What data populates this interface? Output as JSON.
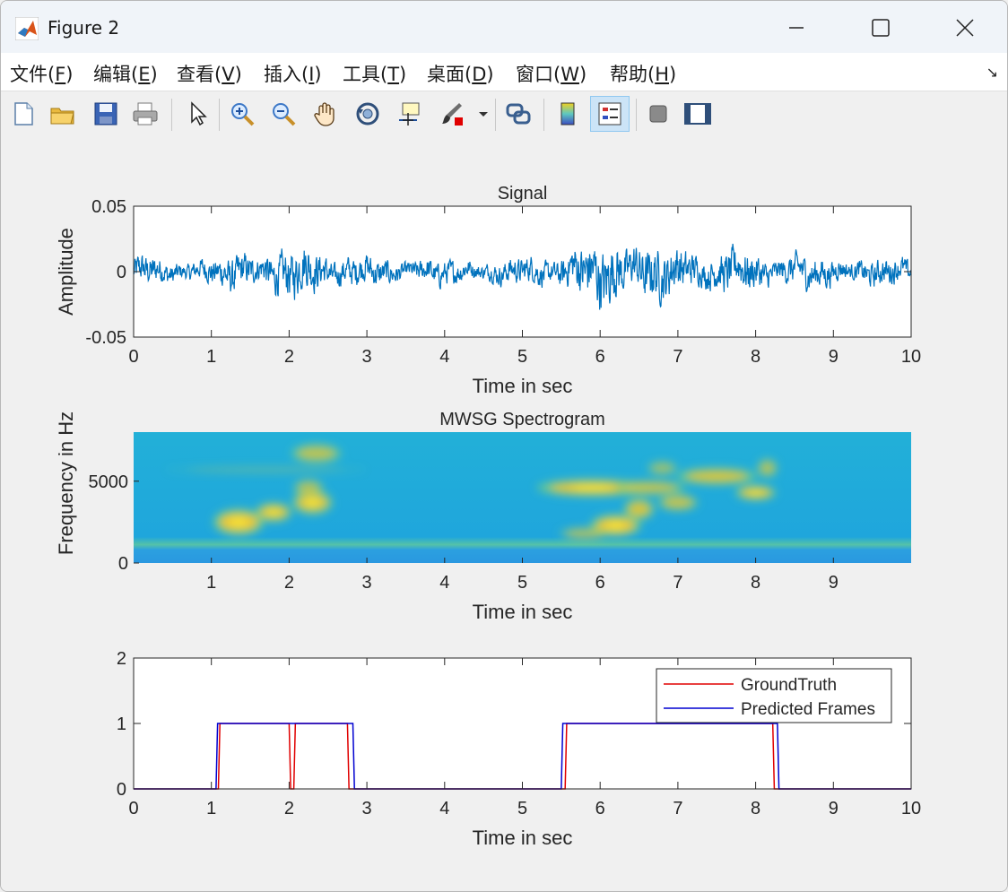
{
  "window": {
    "title": "Figure 2"
  },
  "menu": [
    {
      "pre": "文件(",
      "key": "F",
      "post": ")"
    },
    {
      "pre": "编辑(",
      "key": "E",
      "post": ")"
    },
    {
      "pre": "查看(",
      "key": "V",
      "post": ")"
    },
    {
      "pre": "插入(",
      "key": "I",
      "post": ")"
    },
    {
      "pre": "工具(",
      "key": "T",
      "post": ")"
    },
    {
      "pre": "桌面(",
      "key": "D",
      "post": ")"
    },
    {
      "pre": "窗口(",
      "key": "W",
      "post": ")"
    },
    {
      "pre": "帮助(",
      "key": "H",
      "post": ")"
    }
  ],
  "toolbar_icons": [
    "new-figure-icon",
    "open-file-icon",
    "save-icon",
    "print-icon",
    "select-arrow-icon",
    "zoom-in-icon",
    "zoom-out-icon",
    "pan-hand-icon",
    "rotate-3d-icon",
    "data-cursor-icon",
    "brush-icon",
    "link-plot-icon",
    "colorbar-icon",
    "legend-icon",
    "hide-plot-tools-icon",
    "show-plot-tools-icon"
  ],
  "colors": {
    "signal": "#0072bd",
    "ground_truth": "#e00000",
    "predicted": "#0000d0"
  },
  "chart_data": [
    {
      "type": "line",
      "title": "Signal",
      "xlabel": "Time in sec",
      "ylabel": "Amplitude",
      "xlim": [
        0,
        10
      ],
      "ylim": [
        -0.05,
        0.05
      ],
      "xticks": [
        0,
        1,
        2,
        3,
        4,
        5,
        6,
        7,
        8,
        9,
        10
      ],
      "yticks": [
        -0.05,
        0,
        0.05
      ],
      "ytick_labels": [
        "-0.05",
        "0",
        "0.05"
      ],
      "envelope": [
        {
          "t": 0,
          "amp": 0.012
        },
        {
          "t": 1.0,
          "amp": 0.01
        },
        {
          "t": 1.3,
          "amp": 0.016
        },
        {
          "t": 2.3,
          "amp": 0.02
        },
        {
          "t": 2.9,
          "amp": 0.012
        },
        {
          "t": 4.0,
          "amp": 0.01
        },
        {
          "t": 5.0,
          "amp": 0.01
        },
        {
          "t": 5.6,
          "amp": 0.018
        },
        {
          "t": 6.2,
          "amp": 0.03
        },
        {
          "t": 6.8,
          "amp": 0.02
        },
        {
          "t": 8.0,
          "amp": 0.016
        },
        {
          "t": 9.0,
          "amp": 0.012
        },
        {
          "t": 10,
          "amp": 0.01
        }
      ]
    },
    {
      "type": "heatmap",
      "title": "MWSG Spectrogram",
      "xlabel": "Time in sec",
      "ylabel": "Frequency in Hz",
      "xlim": [
        0,
        10
      ],
      "ylim": [
        0,
        8000
      ],
      "xticks": [
        1,
        2,
        3,
        4,
        5,
        6,
        7,
        8,
        9
      ],
      "yticks": [
        0,
        5000
      ],
      "blobs": [
        {
          "t": 1.35,
          "f": 2500,
          "rt": 0.25,
          "rf": 550,
          "v": 0.95
        },
        {
          "t": 1.8,
          "f": 3100,
          "rt": 0.18,
          "rf": 400,
          "v": 0.85
        },
        {
          "t": 2.3,
          "f": 3700,
          "rt": 0.2,
          "rf": 500,
          "v": 0.85
        },
        {
          "t": 2.25,
          "f": 4600,
          "rt": 0.15,
          "rf": 350,
          "v": 0.6
        },
        {
          "t": 2.35,
          "f": 6700,
          "rt": 0.25,
          "rf": 400,
          "v": 0.65
        },
        {
          "t": 1.7,
          "f": 5700,
          "rt": 1.0,
          "rf": 150,
          "v": 0.2
        },
        {
          "t": 5.9,
          "f": 4600,
          "rt": 0.55,
          "rf": 350,
          "v": 0.9
        },
        {
          "t": 6.65,
          "f": 4600,
          "rt": 0.35,
          "rf": 300,
          "v": 0.7
        },
        {
          "t": 6.2,
          "f": 2300,
          "rt": 0.25,
          "rf": 450,
          "v": 0.95
        },
        {
          "t": 6.5,
          "f": 3300,
          "rt": 0.15,
          "rf": 450,
          "v": 0.8
        },
        {
          "t": 5.8,
          "f": 1800,
          "rt": 0.25,
          "rf": 250,
          "v": 0.6
        },
        {
          "t": 7.0,
          "f": 3700,
          "rt": 0.2,
          "rf": 350,
          "v": 0.7
        },
        {
          "t": 6.8,
          "f": 5800,
          "rt": 0.15,
          "rf": 300,
          "v": 0.5
        },
        {
          "t": 7.5,
          "f": 5300,
          "rt": 0.4,
          "rf": 350,
          "v": 0.8
        },
        {
          "t": 8.0,
          "f": 4300,
          "rt": 0.2,
          "rf": 300,
          "v": 0.9
        },
        {
          "t": 8.15,
          "f": 5800,
          "rt": 0.1,
          "rf": 400,
          "v": 0.6
        }
      ]
    },
    {
      "type": "line",
      "title": "",
      "xlabel": "Time in sec",
      "ylabel": "",
      "xlim": [
        0,
        10
      ],
      "ylim": [
        0,
        2
      ],
      "xticks": [
        0,
        1,
        2,
        3,
        4,
        5,
        6,
        7,
        8,
        9,
        10
      ],
      "yticks": [
        0,
        1,
        2
      ],
      "legend_position": "top-right",
      "series": [
        {
          "name": "GroundTruth",
          "color": "#e00000",
          "segments": [
            [
              1.09,
              2.0
            ],
            [
              2.06,
              2.75
            ],
            [
              5.55,
              8.22
            ]
          ]
        },
        {
          "name": "Predicted Frames",
          "color": "#0000d0",
          "segments": [
            [
              1.06,
              2.82
            ],
            [
              5.5,
              8.28
            ]
          ]
        }
      ]
    }
  ]
}
